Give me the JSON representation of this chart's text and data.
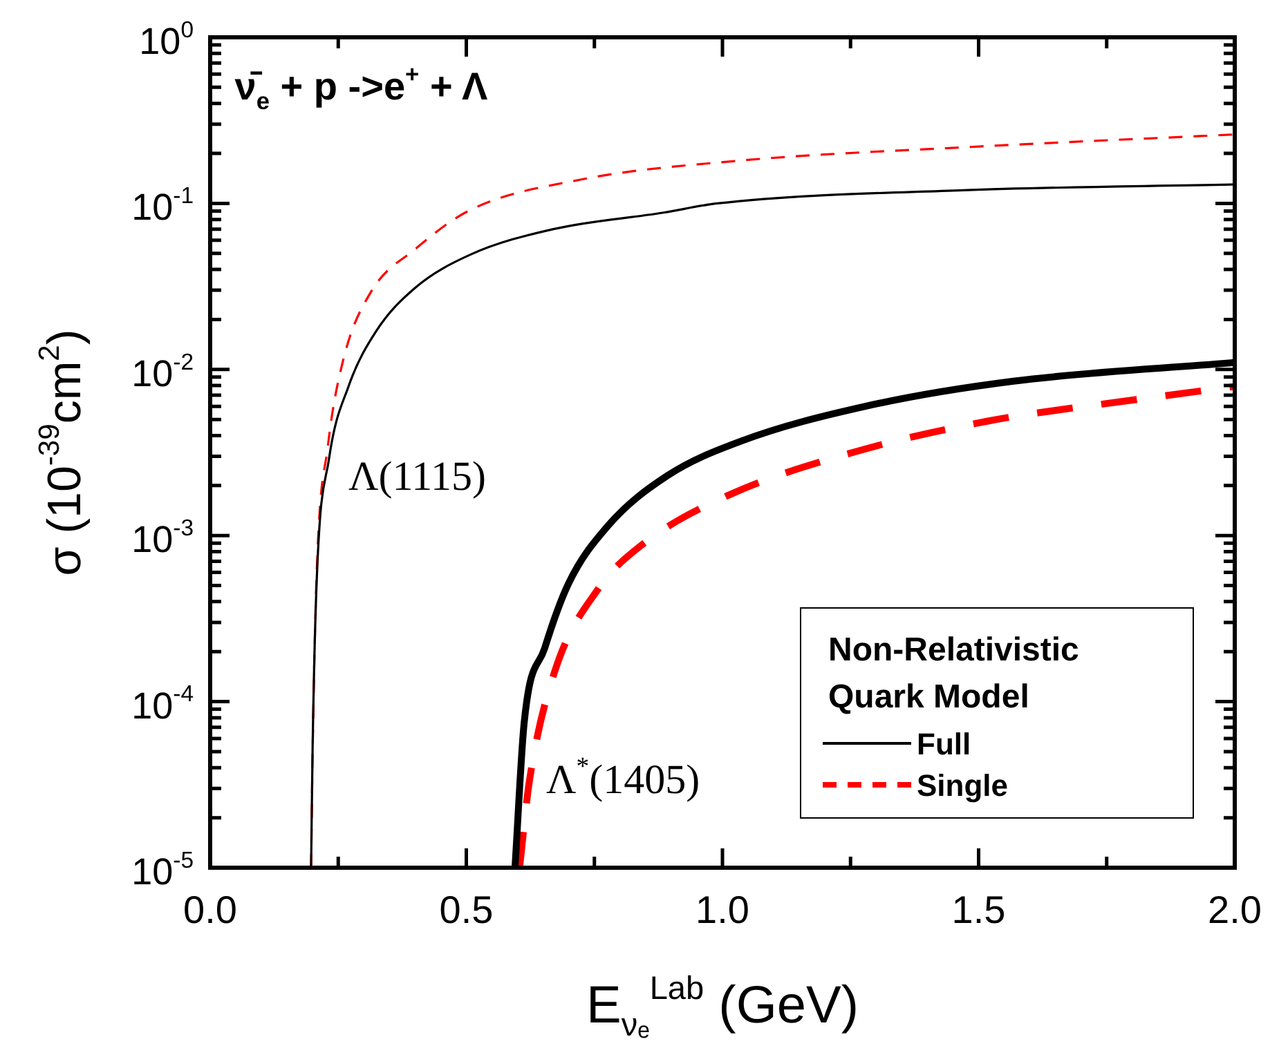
{
  "chart_data": {
    "type": "line",
    "xlabel": "E$_{νₑ}$$^{Lab}$ (GeV)",
    "ylabel": "σ (10$^{-39}$cm$^{2}$)",
    "legend_title": "Non-Relativistic Quark Model",
    "legend": "bottom right",
    "log": "y",
    "marker": "none",
    "grid": false,
    "xlim": [
      0,
      2
    ],
    "xticks": [
      {
        "value": 0,
        "label": "0.0"
      },
      {
        "value": 0.25,
        "label": null
      },
      {
        "value": 0.5,
        "label": "0.5"
      },
      {
        "value": 0.75,
        "label": null
      },
      {
        "value": 1,
        "label": "1.0"
      },
      {
        "value": 1.25,
        "label": null
      },
      {
        "value": 1.5,
        "label": "1.5"
      },
      {
        "value": 1.75,
        "label": null
      },
      {
        "value": 2,
        "label": "2.0"
      }
    ],
    "ylim": [
      1e-05,
      1
    ],
    "yticks": [
      {
        "value": 1e-05,
        "label": "10$^{-5}$"
      },
      {
        "value": 2e-05,
        "label": null
      },
      {
        "value": 3e-05,
        "label": null
      },
      {
        "value": 4e-05,
        "label": null
      },
      {
        "value": 5e-05,
        "label": null
      },
      {
        "value": 6e-05,
        "label": null
      },
      {
        "value": 7e-05,
        "label": null
      },
      {
        "value": 8e-05,
        "label": null
      },
      {
        "value": 9e-05,
        "label": null
      },
      {
        "value": 0.0001,
        "label": "10$^{-4}$"
      },
      {
        "value": 0.0002,
        "label": null
      },
      {
        "value": 0.0003,
        "label": null
      },
      {
        "value": 0.0004,
        "label": null
      },
      {
        "value": 0.0005,
        "label": null
      },
      {
        "value": 0.0006,
        "label": null
      },
      {
        "value": 0.0007,
        "label": null
      },
      {
        "value": 0.0008,
        "label": null
      },
      {
        "value": 0.0009,
        "label": null
      },
      {
        "value": 0.001,
        "label": "10$^{-3}$"
      },
      {
        "value": 0.002,
        "label": null
      },
      {
        "value": 0.003,
        "label": null
      },
      {
        "value": 0.004,
        "label": null
      },
      {
        "value": 0.005,
        "label": null
      },
      {
        "value": 0.006,
        "label": null
      },
      {
        "value": 0.007,
        "label": null
      },
      {
        "value": 0.008,
        "label": null
      },
      {
        "value": 0.009,
        "label": null
      },
      {
        "value": 0.01,
        "label": "10$^{-2}$"
      },
      {
        "value": 0.02,
        "label": null
      },
      {
        "value": 0.03,
        "label": null
      },
      {
        "value": 0.04,
        "label": null
      },
      {
        "value": 0.05,
        "label": null
      },
      {
        "value": 0.06,
        "label": null
      },
      {
        "value": 0.07,
        "label": null
      },
      {
        "value": 0.08,
        "label": null
      },
      {
        "value": 0.09,
        "label": null
      },
      {
        "value": 0.1,
        "label": "10$^{-1}$"
      },
      {
        "value": 0.2,
        "label": null
      },
      {
        "value": 0.3,
        "label": null
      },
      {
        "value": 0.4,
        "label": null
      },
      {
        "value": 0.5,
        "label": null
      },
      {
        "value": 0.6,
        "label": null
      },
      {
        "value": 0.7,
        "label": null
      },
      {
        "value": 0.8,
        "label": null
      },
      {
        "value": 0.9,
        "label": null
      },
      {
        "value": 1,
        "label": "10$^{0}$"
      }
    ],
    "annotations": [
      "ν̄$_{e}$ + p ->e$^{+}$ + Λ",
      "Λ(1115)",
      "Λ$^{*}$(1405)"
    ],
    "series": [
      {
        "name": "Full",
        "color": "#000000",
        "line_style": "solid",
        "x": [
          0.197,
          0.2,
          0.208,
          0.232,
          0.27,
          0.324,
          0.4,
          0.507,
          0.67,
          0.885,
          0.99,
          1.47,
          2.0
        ],
        "values": [
          1e-05,
          5.4e-05,
          0.00054,
          0.0029,
          0.0079,
          0.017,
          0.031,
          0.049,
          0.07,
          0.088,
          0.1,
          0.12,
          0.13
        ]
      },
      {
        "name": "Single",
        "color": "#ff0000",
        "line_style": "dashed",
        "x": [
          0.197,
          0.2,
          0.208,
          0.23,
          0.26,
          0.313,
          0.4,
          0.507,
          0.723,
          1.025,
          1.5,
          2.0
        ],
        "values": [
          1e-05,
          5e-05,
          0.0006,
          0.0035,
          0.0115,
          0.029,
          0.053,
          0.091,
          0.139,
          0.18,
          0.22,
          0.26
        ]
      },
      {
        "color": "#000000",
        "line_style": "solid",
        "x": [
          0.595,
          0.613,
          0.653,
          0.699,
          0.777,
          0.893,
          1.036,
          1.279,
          1.568,
          2.0
        ],
        "values": [
          1e-05,
          7.5e-05,
          0.00021,
          0.00051,
          0.00115,
          0.0023,
          0.0037,
          0.006,
          0.0085,
          0.011
        ]
      },
      {
        "color": "#ff0000",
        "line_style": "dashed",
        "x": [
          0.604,
          0.623,
          0.672,
          0.758,
          0.845,
          1.01,
          1.26,
          1.52,
          1.81,
          2.0
        ],
        "values": [
          1e-05,
          3.3e-05,
          0.00015,
          0.00048,
          0.00089,
          0.00174,
          0.0032,
          0.0049,
          0.0066,
          0.0079
        ]
      }
    ]
  }
}
